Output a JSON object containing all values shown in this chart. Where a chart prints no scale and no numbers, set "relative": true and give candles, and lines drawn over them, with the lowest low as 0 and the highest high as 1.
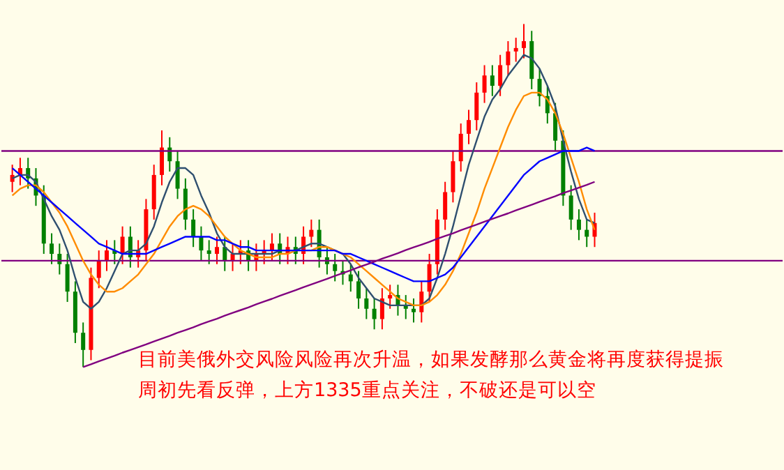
{
  "chart_data": {
    "type": "candlestick",
    "relative": true,
    "tick_labels": false,
    "categories": [
      null,
      null,
      null,
      null,
      null,
      null,
      null,
      null,
      null,
      null,
      null,
      null,
      null,
      null,
      null,
      null,
      null,
      null,
      null,
      null,
      null,
      null,
      null,
      null,
      null,
      null,
      null,
      null,
      null,
      null,
      null,
      null,
      null,
      null,
      null,
      null,
      null,
      null,
      null,
      null,
      null,
      null,
      null,
      null,
      null,
      null,
      null,
      null,
      null,
      null,
      null,
      null,
      null,
      null,
      null,
      null,
      null,
      null,
      null,
      null,
      null,
      null,
      null,
      null,
      null,
      null,
      null,
      null,
      null,
      null,
      null,
      null,
      null,
      null,
      null
    ],
    "ohlc": [
      [
        0.54,
        0.59,
        0.51,
        0.56
      ],
      [
        0.56,
        0.61,
        0.53,
        0.58
      ],
      [
        0.58,
        0.61,
        0.52,
        0.55
      ],
      [
        0.55,
        0.58,
        0.47,
        0.5
      ],
      [
        0.5,
        0.53,
        0.33,
        0.36
      ],
      [
        0.36,
        0.39,
        0.3,
        0.33
      ],
      [
        0.33,
        0.36,
        0.27,
        0.3
      ],
      [
        0.3,
        0.33,
        0.19,
        0.22
      ],
      [
        0.22,
        0.25,
        0.07,
        0.1
      ],
      [
        0.1,
        0.13,
        0,
        0.05
      ],
      [
        0.05,
        0.29,
        0.02,
        0.26
      ],
      [
        0.26,
        0.34,
        0.23,
        0.31
      ],
      [
        0.31,
        0.37,
        0.28,
        0.34
      ],
      [
        0.34,
        0.37,
        0.3,
        0.33
      ],
      [
        0.33,
        0.41,
        0.3,
        0.38
      ],
      [
        0.38,
        0.41,
        0.29,
        0.32
      ],
      [
        0.32,
        0.37,
        0.29,
        0.34
      ],
      [
        0.34,
        0.49,
        0.31,
        0.46
      ],
      [
        0.46,
        0.59,
        0.43,
        0.56
      ],
      [
        0.56,
        0.69,
        0.53,
        0.64
      ],
      [
        0.64,
        0.67,
        0.57,
        0.6
      ],
      [
        0.6,
        0.63,
        0.49,
        0.52
      ],
      [
        0.52,
        0.55,
        0.4,
        0.43
      ],
      [
        0.43,
        0.46,
        0.35,
        0.38
      ],
      [
        0.38,
        0.41,
        0.31,
        0.34
      ],
      [
        0.34,
        0.37,
        0.3,
        0.33
      ],
      [
        0.33,
        0.38,
        0.3,
        0.35
      ],
      [
        0.35,
        0.38,
        0.28,
        0.31
      ],
      [
        0.31,
        0.36,
        0.28,
        0.33
      ],
      [
        0.33,
        0.37,
        0.3,
        0.34
      ],
      [
        0.34,
        0.37,
        0.28,
        0.31
      ],
      [
        0.31,
        0.36,
        0.28,
        0.33
      ],
      [
        0.33,
        0.37,
        0.3,
        0.34
      ],
      [
        0.34,
        0.39,
        0.31,
        0.36
      ],
      [
        0.36,
        0.39,
        0.3,
        0.33
      ],
      [
        0.33,
        0.38,
        0.3,
        0.35
      ],
      [
        0.35,
        0.38,
        0.3,
        0.33
      ],
      [
        0.33,
        0.41,
        0.3,
        0.38
      ],
      [
        0.38,
        0.43,
        0.35,
        0.4
      ],
      [
        0.4,
        0.43,
        0.29,
        0.32
      ],
      [
        0.32,
        0.35,
        0.27,
        0.3
      ],
      [
        0.3,
        0.33,
        0.25,
        0.28
      ],
      [
        0.28,
        0.31,
        0.24,
        0.27
      ],
      [
        0.27,
        0.3,
        0.22,
        0.25
      ],
      [
        0.25,
        0.28,
        0.17,
        0.2
      ],
      [
        0.2,
        0.23,
        0.14,
        0.17
      ],
      [
        0.17,
        0.2,
        0.11,
        0.14
      ],
      [
        0.14,
        0.23,
        0.11,
        0.2
      ],
      [
        0.2,
        0.24,
        0.17,
        0.21
      ],
      [
        0.21,
        0.24,
        0.15,
        0.18
      ],
      [
        0.18,
        0.21,
        0.14,
        0.17
      ],
      [
        0.17,
        0.2,
        0.13,
        0.16
      ],
      [
        0.16,
        0.25,
        0.13,
        0.22
      ],
      [
        0.22,
        0.33,
        0.19,
        0.3
      ],
      [
        0.3,
        0.46,
        0.27,
        0.43
      ],
      [
        0.43,
        0.54,
        0.4,
        0.51
      ],
      [
        0.51,
        0.63,
        0.48,
        0.6
      ],
      [
        0.6,
        0.71,
        0.57,
        0.68
      ],
      [
        0.68,
        0.75,
        0.65,
        0.72
      ],
      [
        0.72,
        0.83,
        0.69,
        0.8
      ],
      [
        0.8,
        0.88,
        0.77,
        0.85
      ],
      [
        0.85,
        0.88,
        0.79,
        0.82
      ],
      [
        0.82,
        0.91,
        0.79,
        0.88
      ],
      [
        0.88,
        0.95,
        0.85,
        0.92
      ],
      [
        0.92,
        0.96,
        0.89,
        0.93
      ],
      [
        0.93,
        1,
        0.9,
        0.95
      ],
      [
        0.95,
        0.98,
        0.81,
        0.84
      ],
      [
        0.84,
        0.87,
        0.76,
        0.79
      ],
      [
        0.79,
        0.82,
        0.71,
        0.74
      ],
      [
        0.74,
        0.77,
        0.63,
        0.66
      ],
      [
        0.66,
        0.69,
        0.47,
        0.5
      ],
      [
        0.5,
        0.53,
        0.4,
        0.43
      ],
      [
        0.43,
        0.46,
        0.37,
        0.4
      ],
      [
        0.4,
        0.43,
        0.35,
        0.38
      ],
      [
        0.38,
        0.45,
        0.35,
        0.42
      ]
    ],
    "colors": [
      "#ff0000",
      "#ff0000",
      "#008000",
      "#008000",
      "#008000",
      "#008000",
      "#008000",
      "#008000",
      "#008000",
      "#008000",
      "#ff0000",
      "#ff0000",
      "#ff0000",
      "#008000",
      "#ff0000",
      "#008000",
      "#ff0000",
      "#ff0000",
      "#ff0000",
      "#ff0000",
      "#008000",
      "#008000",
      "#008000",
      "#008000",
      "#008000",
      "#008000",
      "#ff0000",
      "#008000",
      "#ff0000",
      "#ff0000",
      "#008000",
      "#ff0000",
      "#ff0000",
      "#ff0000",
      "#008000",
      "#ff0000",
      "#008000",
      "#ff0000",
      "#ff0000",
      "#008000",
      "#008000",
      "#008000",
      "#008000",
      "#008000",
      "#008000",
      "#008000",
      "#008000",
      "#ff0000",
      "#ff0000",
      "#008000",
      "#008000",
      "#008000",
      "#ff0000",
      "#ff0000",
      "#ff0000",
      "#ff0000",
      "#ff0000",
      "#ff0000",
      "#ff0000",
      "#ff0000",
      "#ff0000",
      "#008000",
      "#ff0000",
      "#ff0000",
      "#ff0000",
      "#ff0000",
      "#008000",
      "#008000",
      "#008000",
      "#008000",
      "#008000",
      "#008000",
      "#008000",
      "#008000",
      "#ff0000"
    ],
    "series": [
      {
        "type": "line",
        "color": "#2f4f6f",
        "values": [
          0.55,
          0.56,
          0.56,
          0.54,
          0.49,
          0.44,
          0.4,
          0.34,
          0.26,
          0.19,
          0.17,
          0.19,
          0.23,
          0.28,
          0.33,
          0.34,
          0.34,
          0.36,
          0.41,
          0.48,
          0.54,
          0.58,
          0.58,
          0.56,
          0.5,
          0.45,
          0.39,
          0.35,
          0.33,
          0.33,
          0.33,
          0.33,
          0.33,
          0.33,
          0.34,
          0.34,
          0.34,
          0.35,
          0.36,
          0.36,
          0.35,
          0.34,
          0.33,
          0.3,
          0.26,
          0.23,
          0.2,
          0.19,
          0.18,
          0.18,
          0.18,
          0.18,
          0.18,
          0.2,
          0.26,
          0.33,
          0.41,
          0.5,
          0.59,
          0.66,
          0.73,
          0.78,
          0.81,
          0.85,
          0.88,
          0.91,
          0.9,
          0.87,
          0.82,
          0.76,
          0.66,
          0.57,
          0.49,
          0.43,
          0.42
        ]
      },
      {
        "type": "line",
        "color": "#ff8c00",
        "values": [
          0.5,
          0.52,
          0.53,
          0.53,
          0.51,
          0.48,
          0.45,
          0.41,
          0.36,
          0.31,
          0.27,
          0.24,
          0.22,
          0.22,
          0.23,
          0.25,
          0.27,
          0.3,
          0.33,
          0.37,
          0.41,
          0.44,
          0.46,
          0.47,
          0.46,
          0.44,
          0.41,
          0.38,
          0.36,
          0.34,
          0.33,
          0.32,
          0.32,
          0.32,
          0.33,
          0.33,
          0.34,
          0.34,
          0.34,
          0.35,
          0.35,
          0.34,
          0.33,
          0.32,
          0.3,
          0.28,
          0.26,
          0.24,
          0.22,
          0.2,
          0.19,
          0.18,
          0.18,
          0.19,
          0.21,
          0.24,
          0.28,
          0.33,
          0.39,
          0.45,
          0.52,
          0.58,
          0.64,
          0.7,
          0.75,
          0.79,
          0.8,
          0.8,
          0.78,
          0.74,
          0.68,
          0.61,
          0.54,
          0.46,
          0.4
        ]
      },
      {
        "type": "line",
        "color": "#0000ff",
        "values": [
          0.58,
          0.56,
          0.54,
          0.52,
          0.5,
          0.48,
          0.46,
          0.44,
          0.42,
          0.4,
          0.38,
          0.36,
          0.35,
          0.34,
          0.33,
          0.33,
          0.33,
          0.33,
          0.34,
          0.35,
          0.36,
          0.37,
          0.38,
          0.38,
          0.38,
          0.38,
          0.37,
          0.37,
          0.36,
          0.35,
          0.35,
          0.34,
          0.34,
          0.34,
          0.34,
          0.34,
          0.34,
          0.34,
          0.34,
          0.34,
          0.34,
          0.34,
          0.33,
          0.33,
          0.32,
          0.31,
          0.3,
          0.29,
          0.28,
          0.27,
          0.26,
          0.25,
          0.25,
          0.25,
          0.26,
          0.27,
          0.29,
          0.32,
          0.35,
          0.38,
          0.41,
          0.44,
          0.47,
          0.5,
          0.53,
          0.56,
          0.58,
          0.6,
          0.61,
          0.62,
          0.63,
          0.63,
          0.63,
          0.64,
          0.63
        ]
      },
      {
        "type": "line",
        "color": "#800080",
        "values": [
          null,
          null,
          null,
          null,
          null,
          null,
          null,
          null,
          null,
          0,
          0.008,
          0.017,
          0.025,
          0.033,
          0.042,
          0.05,
          0.058,
          0.066,
          0.075,
          0.083,
          0.091,
          0.1,
          0.108,
          0.116,
          0.125,
          0.133,
          0.141,
          0.15,
          0.158,
          0.166,
          0.174,
          0.183,
          0.191,
          0.199,
          0.208,
          0.216,
          0.224,
          0.233,
          0.241,
          0.249,
          0.257,
          0.266,
          0.274,
          0.282,
          0.291,
          0.299,
          0.307,
          0.316,
          0.324,
          0.332,
          0.341,
          0.349,
          0.357,
          0.365,
          0.374,
          0.382,
          0.39,
          0.399,
          0.407,
          0.415,
          0.424,
          0.432,
          0.44,
          0.448,
          0.457,
          0.465,
          0.473,
          0.482,
          0.49,
          0.498,
          0.507,
          0.515,
          0.523,
          0.531,
          0.54
        ]
      }
    ],
    "ref_lines": [
      {
        "axis": "y",
        "value": 0.63,
        "color": "#800080"
      },
      {
        "axis": "y",
        "value": 0.31,
        "color": "#800080"
      }
    ],
    "annotations": [
      "目前美俄外交风险风险再次升温，如果发酵那么黄金将再度获得提振",
      "周初先看反弹，上方1335重点关注，不破还是可以空"
    ]
  }
}
